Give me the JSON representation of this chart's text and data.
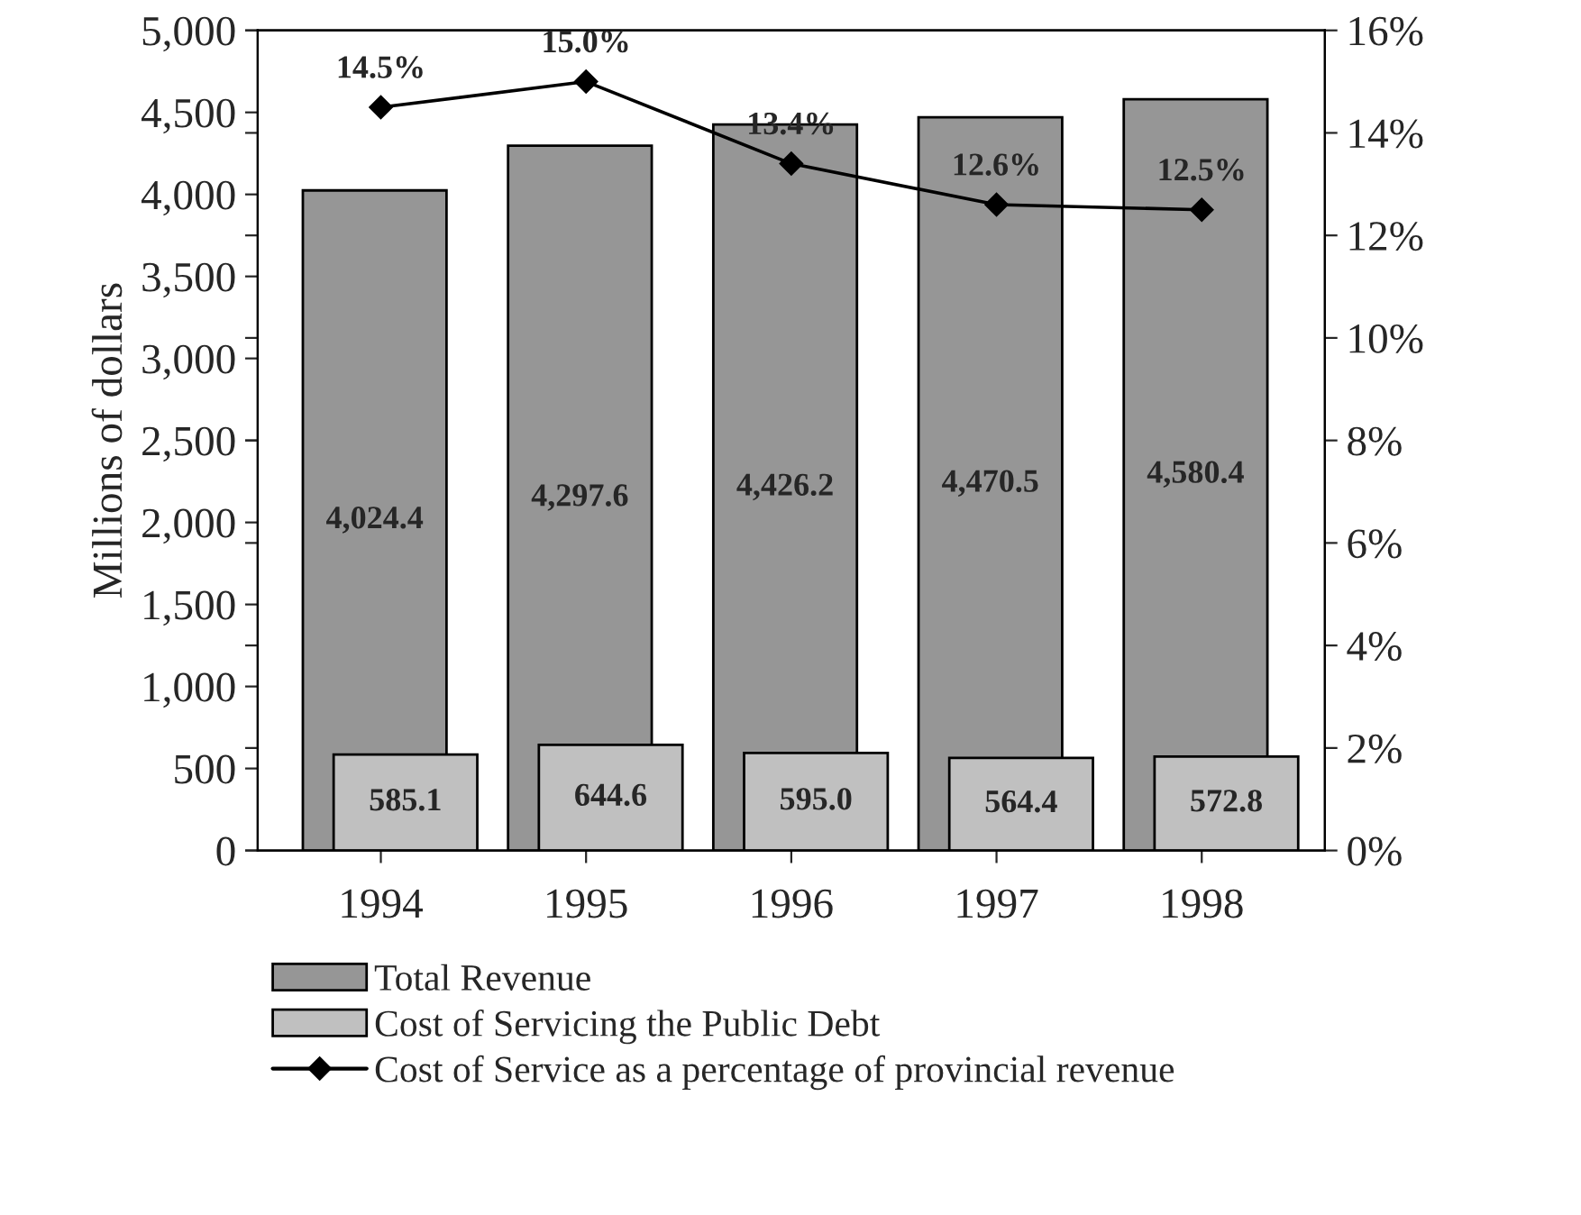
{
  "chart_data": {
    "type": "bar",
    "ylabel": "Millions of dollars",
    "categories": [
      "1994",
      "1995",
      "1996",
      "1997",
      "1998"
    ],
    "series": [
      {
        "name": "Total Revenue",
        "color": "#969696",
        "values": [
          4024.4,
          4297.6,
          4426.2,
          4470.5,
          4580.4
        ],
        "value_labels": [
          "4,024.4",
          "4,297.6",
          "4,426.2",
          "4,470.5",
          "4,580.4"
        ]
      },
      {
        "name": "Cost of Servicing the Public Debt",
        "color": "#c0c0c0",
        "values": [
          585.1,
          644.6,
          595.0,
          564.4,
          572.8
        ],
        "value_labels": [
          "585.1",
          "644.6",
          "595.0",
          "564.4",
          "572.8"
        ]
      },
      {
        "name": "Cost of Service as a percentage of provincial revenue",
        "type": "line",
        "axis": "y2",
        "color": "#000000",
        "marker": "diamond",
        "values": [
          14.5,
          15.0,
          13.4,
          12.6,
          12.5
        ],
        "value_labels": [
          "14.5%",
          "15.0%",
          "13.4%",
          "12.6%",
          "12.5%"
        ]
      }
    ],
    "ylim": [
      0,
      5000
    ],
    "yticks": [
      {
        "value": 0,
        "label": "0"
      },
      {
        "value": 500,
        "label": "500"
      },
      {
        "value": 1000,
        "label": "1,000"
      },
      {
        "value": 1500,
        "label": "1,500"
      },
      {
        "value": 2000,
        "label": "2,000"
      },
      {
        "value": 2500,
        "label": "2,500"
      },
      {
        "value": 3000,
        "label": "3,000"
      },
      {
        "value": 3500,
        "label": "3,500"
      },
      {
        "value": 4000,
        "label": "4,000"
      },
      {
        "value": 4500,
        "label": "4,500"
      },
      {
        "value": 5000,
        "label": "5,000"
      }
    ],
    "y2lim": [
      0,
      16
    ],
    "y2ticks": [
      {
        "value": 0,
        "label": "0%"
      },
      {
        "value": 2,
        "label": "2%"
      },
      {
        "value": 4,
        "label": "4%"
      },
      {
        "value": 6,
        "label": "6%"
      },
      {
        "value": 8,
        "label": "8%"
      },
      {
        "value": 10,
        "label": "10%"
      },
      {
        "value": 12,
        "label": "12%"
      },
      {
        "value": 14,
        "label": "14%"
      },
      {
        "value": 16,
        "label": "16%"
      }
    ],
    "legend": "bottom",
    "grid": false
  }
}
